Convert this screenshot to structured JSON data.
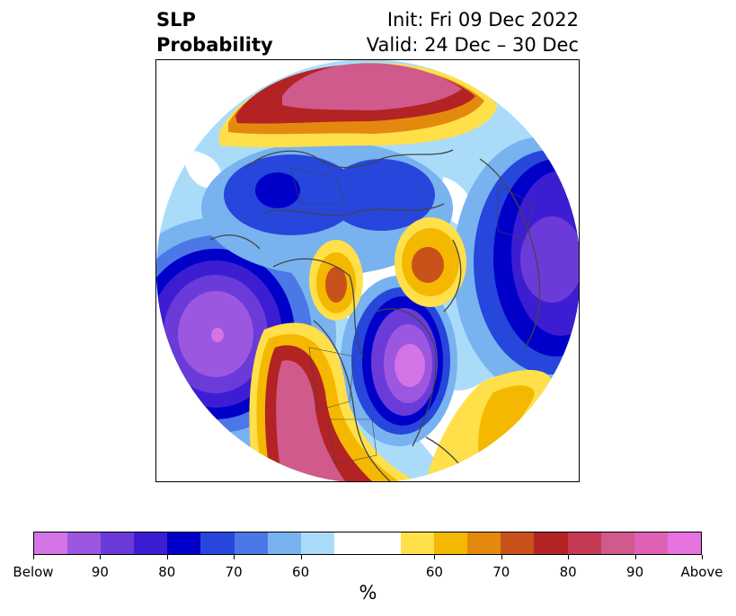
{
  "title": {
    "variable": "SLP",
    "product": "Probability",
    "init": "Init: Fri 09 Dec 2022",
    "valid": "Valid: 24 Dec – 30 Dec"
  },
  "colorbar": {
    "colors": [
      "#d473e6",
      "#9c57e0",
      "#6a3bd9",
      "#3d1dd1",
      "#0000c8",
      "#2646dc",
      "#4b78e6",
      "#78b3f0",
      "#aadcfa",
      "#ffffff",
      "#ffe04a",
      "#f5b800",
      "#e38a0e",
      "#c8521a",
      "#b32323",
      "#c43a55",
      "#d05a8c",
      "#de61b5",
      "#e672df"
    ],
    "tick_labels": [
      "Below",
      "90",
      "80",
      "70",
      "60",
      "60",
      "70",
      "80",
      "90",
      "Above"
    ],
    "unit": "%"
  },
  "map": {
    "projection": "north-polar-stereographic",
    "colors": {
      "light_blue": "#aadcfa",
      "sky_blue": "#78b3f0",
      "mid_blue": "#4b78e6",
      "blue": "#2646dc",
      "deep_blue": "#0000c8",
      "indigo": "#3d1dd1",
      "violet": "#6a3bd9",
      "purple": "#9c57e0",
      "magenta": "#d473e6",
      "yellow": "#ffe04a",
      "gold": "#f5b800",
      "orange": "#e38a0e",
      "rust": "#c8521a",
      "red": "#b32323",
      "crimson": "#c43a55",
      "pink": "#d05a8c",
      "hot_pink": "#de61b5",
      "coast": "#444444"
    }
  }
}
